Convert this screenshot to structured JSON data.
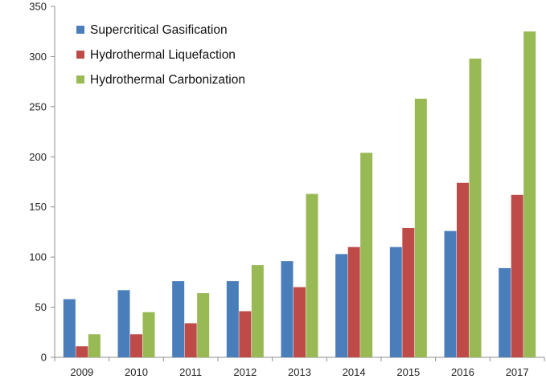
{
  "chart_data": {
    "type": "bar",
    "title": "",
    "xlabel": "",
    "ylabel": "",
    "categories": [
      "2009",
      "2010",
      "2011",
      "2012",
      "2013",
      "2014",
      "2015",
      "2016",
      "2017"
    ],
    "series": [
      {
        "name": "Supercritical Gasification",
        "color": "#4a7ebb",
        "values": [
          58,
          67,
          76,
          76,
          96,
          103,
          110,
          126,
          89
        ]
      },
      {
        "name": "Hydrothermal Liquefaction",
        "color": "#be4b48",
        "values": [
          11,
          23,
          34,
          46,
          70,
          110,
          129,
          174,
          162
        ]
      },
      {
        "name": "Hydrothermal Carbonization",
        "color": "#98b954",
        "values": [
          23,
          45,
          64,
          92,
          163,
          204,
          258,
          298,
          325
        ]
      }
    ],
    "ylim": [
      0,
      350
    ],
    "yticks": [
      0,
      50,
      100,
      150,
      200,
      250,
      300,
      350
    ],
    "grid": false,
    "legend_position": "top-left"
  }
}
